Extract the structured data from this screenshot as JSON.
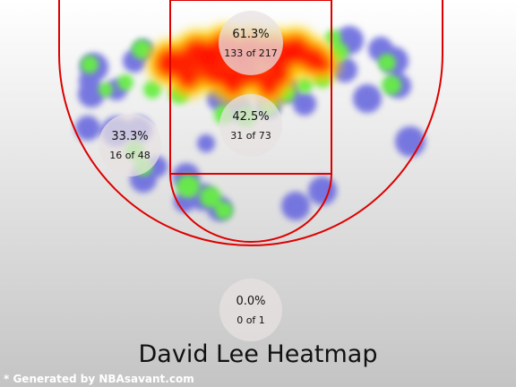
{
  "chart_data": {
    "type": "heatmap",
    "title": "David Lee Heatmap",
    "zones": [
      {
        "name": "paint-upper",
        "pct": "61.3%",
        "made": 133,
        "attempts": 217,
        "frac": "133 of 217"
      },
      {
        "name": "paint-lower",
        "pct": "42.5%",
        "made": 31,
        "attempts": 73,
        "frac": "31 of 73"
      },
      {
        "name": "left-wing",
        "pct": "33.3%",
        "made": 16,
        "attempts": 48,
        "frac": "16 of 48"
      },
      {
        "name": "long-range",
        "pct": "0.0%",
        "made": 0,
        "attempts": 1,
        "frac": "0 of 1"
      }
    ]
  },
  "footer": {
    "credit": "* Generated by NBAsavant.com"
  },
  "colors": {
    "background_top": "#ffffff",
    "background_bottom": "#c4c4c4",
    "court_lines": "#dd0000",
    "density_low": "#6b6bdf",
    "density_mid": "#66ee44",
    "density_high": "#ff2200",
    "zone_bubble": "#e8e2e2"
  }
}
